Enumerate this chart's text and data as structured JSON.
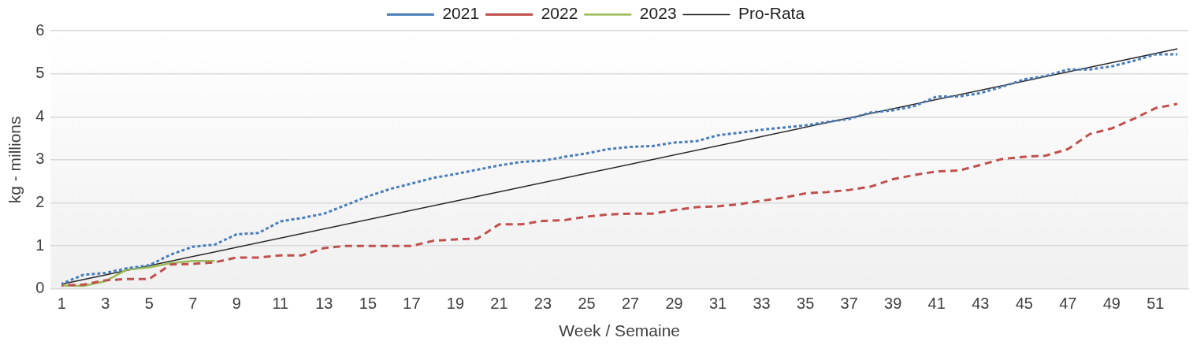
{
  "chart_data": {
    "type": "line",
    "xlabel": "Week / Semaine",
    "ylabel": "kg - millions",
    "x": [
      1,
      2,
      3,
      4,
      5,
      6,
      7,
      8,
      9,
      10,
      11,
      12,
      13,
      14,
      15,
      16,
      17,
      18,
      19,
      20,
      21,
      22,
      23,
      24,
      25,
      26,
      27,
      28,
      29,
      30,
      31,
      32,
      33,
      34,
      35,
      36,
      37,
      38,
      39,
      40,
      41,
      42,
      43,
      44,
      45,
      46,
      47,
      48,
      49,
      50,
      51,
      52
    ],
    "xlim": [
      0.5,
      52.5
    ],
    "xticks": [
      1,
      3,
      5,
      7,
      9,
      11,
      13,
      15,
      17,
      19,
      21,
      23,
      25,
      27,
      29,
      31,
      33,
      35,
      37,
      39,
      41,
      43,
      45,
      47,
      49,
      51
    ],
    "ylim": [
      0,
      6
    ],
    "yticks": [
      0,
      1,
      2,
      3,
      4,
      5,
      6
    ],
    "grid": "y",
    "legend": "top",
    "marker": "none",
    "series": [
      {
        "name": "2021",
        "color": "#4a7ebb",
        "line_style": "dotted",
        "values": [
          0.12,
          0.33,
          0.37,
          0.48,
          0.55,
          0.8,
          0.98,
          1.03,
          1.27,
          1.3,
          1.57,
          1.65,
          1.75,
          1.95,
          2.15,
          2.32,
          2.45,
          2.58,
          2.67,
          2.77,
          2.87,
          2.95,
          2.98,
          3.07,
          3.15,
          3.25,
          3.3,
          3.32,
          3.4,
          3.43,
          3.57,
          3.63,
          3.7,
          3.75,
          3.8,
          3.88,
          3.95,
          4.1,
          4.15,
          4.25,
          4.47,
          4.47,
          4.55,
          4.7,
          4.87,
          4.95,
          5.1,
          5.1,
          5.17,
          5.3,
          5.45,
          5.45
        ]
      },
      {
        "name": "2022",
        "color": "#c0504d",
        "line_style": "dashed",
        "values": [
          0.08,
          0.1,
          0.2,
          0.23,
          0.23,
          0.57,
          0.58,
          0.62,
          0.73,
          0.73,
          0.78,
          0.78,
          0.95,
          1.0,
          1.0,
          1.0,
          1.0,
          1.12,
          1.15,
          1.17,
          1.5,
          1.5,
          1.58,
          1.6,
          1.68,
          1.73,
          1.75,
          1.75,
          1.83,
          1.9,
          1.92,
          1.97,
          2.05,
          2.12,
          2.22,
          2.25,
          2.3,
          2.38,
          2.55,
          2.65,
          2.73,
          2.75,
          2.88,
          3.02,
          3.07,
          3.1,
          3.25,
          3.6,
          3.73,
          3.95,
          4.2,
          4.3
        ]
      },
      {
        "name": "2023",
        "color": "#9bbb59",
        "line_style": "solid",
        "values": [
          0.08,
          0.07,
          0.18,
          0.45,
          0.5,
          0.6,
          0.65,
          0.65,
          null,
          null,
          null,
          null,
          null,
          null,
          null,
          null,
          null,
          null,
          null,
          null,
          null,
          null,
          null,
          null,
          null,
          null,
          null,
          null,
          null,
          null,
          null,
          null,
          null,
          null,
          null,
          null,
          null,
          null,
          null,
          null,
          null,
          null,
          null,
          null,
          null,
          null,
          null,
          null,
          null,
          null,
          null,
          null
        ]
      },
      {
        "name": "Pro-Rata",
        "color": "#262626",
        "line_style": "solid",
        "x": [
          1,
          52
        ],
        "values": [
          0.11,
          5.58
        ]
      }
    ]
  }
}
